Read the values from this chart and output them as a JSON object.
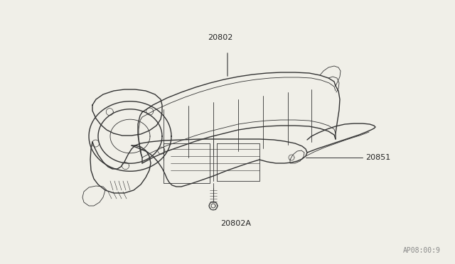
{
  "bg_color": "#f0efe8",
  "line_color": "#333333",
  "label_color": "#222222",
  "watermark": "AP08:00:9",
  "fig_w": 6.4,
  "fig_h": 3.72,
  "dpi": 100
}
